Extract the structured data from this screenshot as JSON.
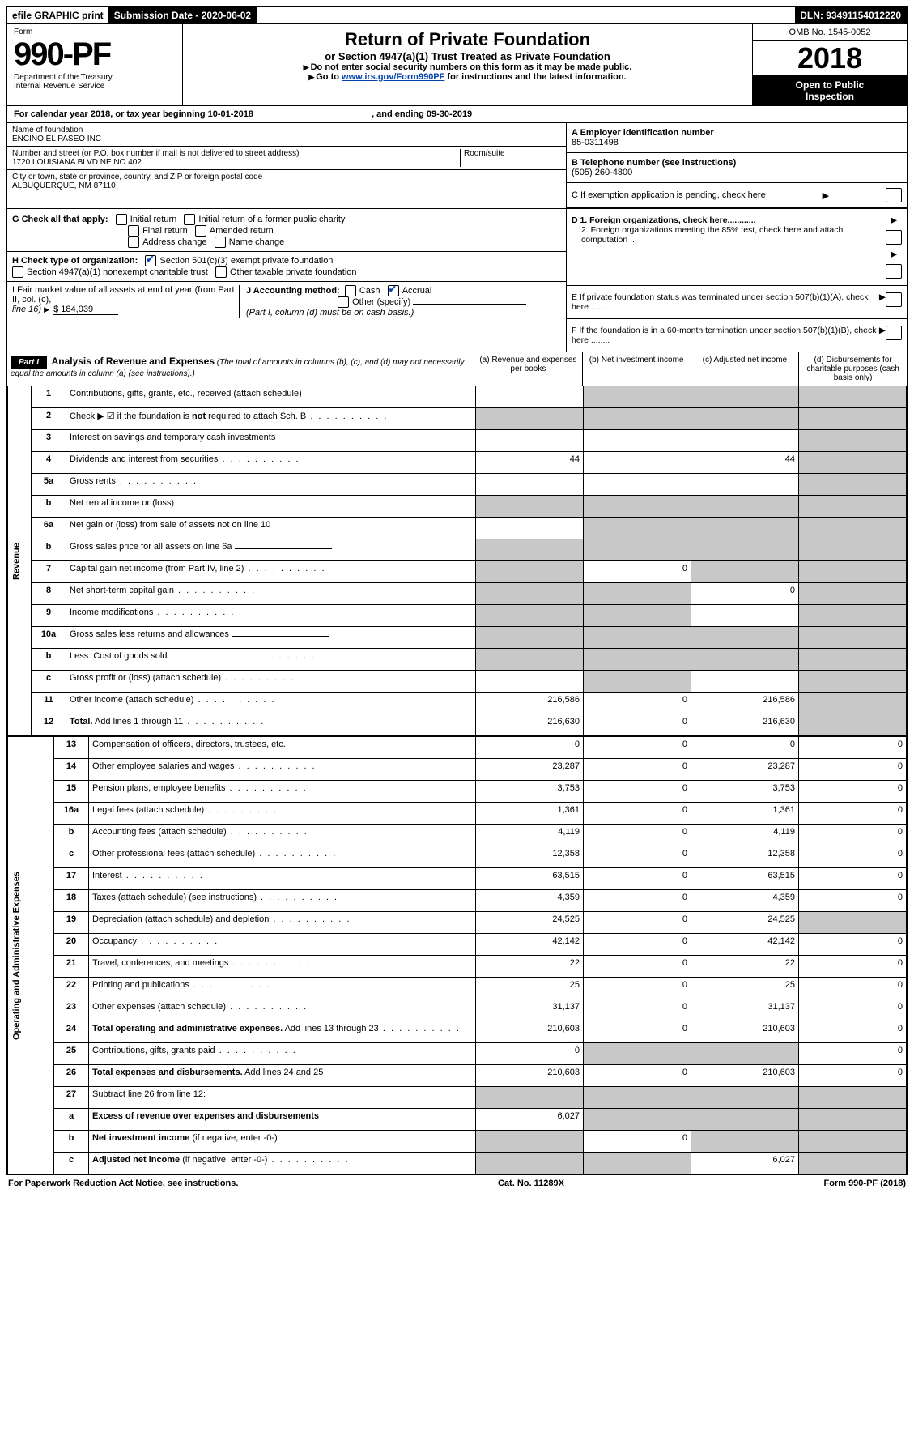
{
  "topbar": {
    "efile": "efile GRAPHIC print",
    "subdate_label": "Submission Date - ",
    "subdate": "2020-06-02",
    "dln_label": "DLN: ",
    "dln": "93491154012220"
  },
  "form_id": {
    "form_word": "Form",
    "form_num": "990-PF",
    "dept1": "Department of the Treasury",
    "dept2": "Internal Revenue Service"
  },
  "title": {
    "main": "Return of Private Foundation",
    "sub": "or Section 4947(a)(1) Trust Treated as Private Foundation",
    "instr1": "Do not enter social security numbers on this form as it may be made public.",
    "instr2_pre": "Go to ",
    "instr2_link": "www.irs.gov/Form990PF",
    "instr2_post": " for instructions and the latest information."
  },
  "right_head": {
    "omb": "OMB No. 1545-0052",
    "year": "2018",
    "open1": "Open to Public",
    "open2": "Inspection"
  },
  "calyear": {
    "text_a": "For calendar year 2018, or tax year beginning ",
    "begin": "10-01-2018",
    "text_b": " , and ending ",
    "end": "09-30-2019"
  },
  "entity": {
    "name_label": "Name of foundation",
    "name": "ENCINO EL PASEO INC",
    "addr_label": "Number and street (or P.O. box number if mail is not delivered to street address)",
    "room_label": "Room/suite",
    "addr": "1720 LOUISIANA BLVD NE NO 402",
    "city_label": "City or town, state or province, country, and ZIP or foreign postal code",
    "city": "ALBUQUERQUE, NM  87110",
    "ein_label": "A Employer identification number",
    "ein": "85-0311498",
    "tel_label": "B Telephone number (see instructions)",
    "tel": "(505) 260-4800",
    "c_label": "C If exemption application is pending, check here"
  },
  "g_checks": {
    "label": "G Check all that apply:",
    "opts": [
      "Initial return",
      "Initial return of a former public charity",
      "Final return",
      "Amended return",
      "Address change",
      "Name change"
    ]
  },
  "h_check": {
    "label": "H Check type of organization:",
    "opt1": "Section 501(c)(3) exempt private foundation",
    "opt2": "Section 4947(a)(1) nonexempt charitable trust",
    "opt3": "Other taxable private foundation"
  },
  "i_block": {
    "label_a": "I Fair market value of all assets at end of year (from Part II, col. (c),",
    "label_b": "line 16)",
    "value": "$  184,039"
  },
  "j_block": {
    "label": "J Accounting method:",
    "cash": "Cash",
    "accrual": "Accrual",
    "other": "Other (specify)",
    "note": "(Part I, column (d) must be on cash basis.)"
  },
  "d_block": {
    "d1": "D 1. Foreign organizations, check here............",
    "d2": "2. Foreign organizations meeting the 85% test, check here and attach computation ..."
  },
  "e_block": "E  If private foundation status was terminated under section 507(b)(1)(A), check here .......",
  "f_block": "F  If the foundation is in a 60-month termination under section 507(b)(1)(B), check here ........",
  "part1": {
    "label": "Part I",
    "title": "Analysis of Revenue and Expenses",
    "note": "(The total of amounts in columns (b), (c), and (d) may not necessarily equal the amounts in column (a) (see instructions).)",
    "cols": {
      "a": "(a)    Revenue and expenses per books",
      "b": "(b)   Net investment income",
      "c": "(c)   Adjusted net income",
      "d": "(d)   Disbursements for charitable purposes (cash basis only)"
    }
  },
  "revenue_label": "Revenue",
  "expense_label": "Operating and Administrative Expenses",
  "rows": [
    {
      "n": "1",
      "d": "Contributions, gifts, grants, etc., received (attach schedule)",
      "a": "",
      "b": "grey",
      "c": "grey",
      "e": "grey"
    },
    {
      "n": "2",
      "d": "Check ▶ ☑ if the foundation is <b>not</b> required to attach Sch. B",
      "dot": true,
      "a": "grey",
      "b": "grey",
      "c": "grey",
      "e": "grey"
    },
    {
      "n": "3",
      "d": "Interest on savings and temporary cash investments",
      "a": "",
      "b": "",
      "c": "",
      "e": "grey"
    },
    {
      "n": "4",
      "d": "Dividends and interest from securities",
      "dot": true,
      "a": "44",
      "b": "",
      "c": "44",
      "e": "grey"
    },
    {
      "n": "5a",
      "d": "Gross rents",
      "dot": true,
      "a": "",
      "b": "",
      "c": "",
      "e": "grey"
    },
    {
      "n": "b",
      "d": "Net rental income or (loss)",
      "line": true,
      "a": "grey",
      "b": "grey",
      "c": "grey",
      "e": "grey"
    },
    {
      "n": "6a",
      "d": "Net gain or (loss) from sale of assets not on line 10",
      "a": "",
      "b": "grey",
      "c": "grey",
      "e": "grey"
    },
    {
      "n": "b",
      "d": "Gross sales price for all assets on line 6a",
      "line": true,
      "a": "grey",
      "b": "grey",
      "c": "grey",
      "e": "grey"
    },
    {
      "n": "7",
      "d": "Capital gain net income (from Part IV, line 2)",
      "dot": true,
      "a": "grey",
      "b": "0",
      "c": "grey",
      "e": "grey"
    },
    {
      "n": "8",
      "d": "Net short-term capital gain",
      "dot": true,
      "a": "grey",
      "b": "grey",
      "c": "0",
      "e": "grey"
    },
    {
      "n": "9",
      "d": "Income modifications",
      "dot": true,
      "a": "grey",
      "b": "grey",
      "c": "",
      "e": "grey"
    },
    {
      "n": "10a",
      "d": "Gross sales less returns and allowances",
      "line": true,
      "a": "grey",
      "b": "grey",
      "c": "grey",
      "e": "grey"
    },
    {
      "n": "b",
      "d": "Less: Cost of goods sold",
      "dot": true,
      "line": true,
      "a": "grey",
      "b": "grey",
      "c": "grey",
      "e": "grey"
    },
    {
      "n": "c",
      "d": "Gross profit or (loss) (attach schedule)",
      "dot": true,
      "a": "",
      "b": "grey",
      "c": "",
      "e": "grey"
    },
    {
      "n": "11",
      "d": "Other income (attach schedule)",
      "dot": true,
      "a": "216,586",
      "b": "0",
      "c": "216,586",
      "e": "grey"
    },
    {
      "n": "12",
      "d": "<b>Total.</b> Add lines 1 through 11",
      "dot": true,
      "a": "216,630",
      "b": "0",
      "c": "216,630",
      "e": "grey"
    }
  ],
  "exp_rows": [
    {
      "n": "13",
      "d": "Compensation of officers, directors, trustees, etc.",
      "a": "0",
      "b": "0",
      "c": "0",
      "e": "0"
    },
    {
      "n": "14",
      "d": "Other employee salaries and wages",
      "dot": true,
      "a": "23,287",
      "b": "0",
      "c": "23,287",
      "e": "0"
    },
    {
      "n": "15",
      "d": "Pension plans, employee benefits",
      "dot": true,
      "a": "3,753",
      "b": "0",
      "c": "3,753",
      "e": "0"
    },
    {
      "n": "16a",
      "d": "Legal fees (attach schedule)",
      "dot": true,
      "a": "1,361",
      "b": "0",
      "c": "1,361",
      "e": "0"
    },
    {
      "n": "b",
      "d": "Accounting fees (attach schedule)",
      "dot": true,
      "a": "4,119",
      "b": "0",
      "c": "4,119",
      "e": "0"
    },
    {
      "n": "c",
      "d": "Other professional fees (attach schedule)",
      "dot": true,
      "a": "12,358",
      "b": "0",
      "c": "12,358",
      "e": "0"
    },
    {
      "n": "17",
      "d": "Interest",
      "dot": true,
      "a": "63,515",
      "b": "0",
      "c": "63,515",
      "e": "0"
    },
    {
      "n": "18",
      "d": "Taxes (attach schedule) (see instructions)",
      "dot": true,
      "a": "4,359",
      "b": "0",
      "c": "4,359",
      "e": "0"
    },
    {
      "n": "19",
      "d": "Depreciation (attach schedule) and depletion",
      "dot": true,
      "a": "24,525",
      "b": "0",
      "c": "24,525",
      "e": "grey"
    },
    {
      "n": "20",
      "d": "Occupancy",
      "dot": true,
      "a": "42,142",
      "b": "0",
      "c": "42,142",
      "e": "0"
    },
    {
      "n": "21",
      "d": "Travel, conferences, and meetings",
      "dot": true,
      "a": "22",
      "b": "0",
      "c": "22",
      "e": "0"
    },
    {
      "n": "22",
      "d": "Printing and publications",
      "dot": true,
      "a": "25",
      "b": "0",
      "c": "25",
      "e": "0"
    },
    {
      "n": "23",
      "d": "Other expenses (attach schedule)",
      "dot": true,
      "a": "31,137",
      "b": "0",
      "c": "31,137",
      "e": "0"
    },
    {
      "n": "24",
      "d": "<b>Total operating and administrative expenses.</b> Add lines 13 through 23",
      "dot": true,
      "a": "210,603",
      "b": "0",
      "c": "210,603",
      "e": "0"
    },
    {
      "n": "25",
      "d": "Contributions, gifts, grants paid",
      "dot": true,
      "a": "0",
      "b": "grey",
      "c": "grey",
      "e": "0"
    },
    {
      "n": "26",
      "d": "<b>Total expenses and disbursements.</b> Add lines 24 and 25",
      "a": "210,603",
      "b": "0",
      "c": "210,603",
      "e": "0"
    },
    {
      "n": "27",
      "d": "Subtract line 26 from line 12:",
      "a": "grey",
      "b": "grey",
      "c": "grey",
      "e": "grey"
    },
    {
      "n": "a",
      "d": "<b>Excess of revenue over expenses and disbursements</b>",
      "a": "6,027",
      "b": "grey",
      "c": "grey",
      "e": "grey"
    },
    {
      "n": "b",
      "d": "<b>Net investment income</b> (if negative, enter -0-)",
      "a": "grey",
      "b": "0",
      "c": "grey",
      "e": "grey"
    },
    {
      "n": "c",
      "d": "<b>Adjusted net income</b> (if negative, enter -0-)",
      "dot": true,
      "a": "grey",
      "b": "grey",
      "c": "6,027",
      "e": "grey"
    }
  ],
  "footer": {
    "left": "For Paperwork Reduction Act Notice, see instructions.",
    "mid": "Cat. No. 11289X",
    "right": "Form 990-PF (2018)"
  }
}
